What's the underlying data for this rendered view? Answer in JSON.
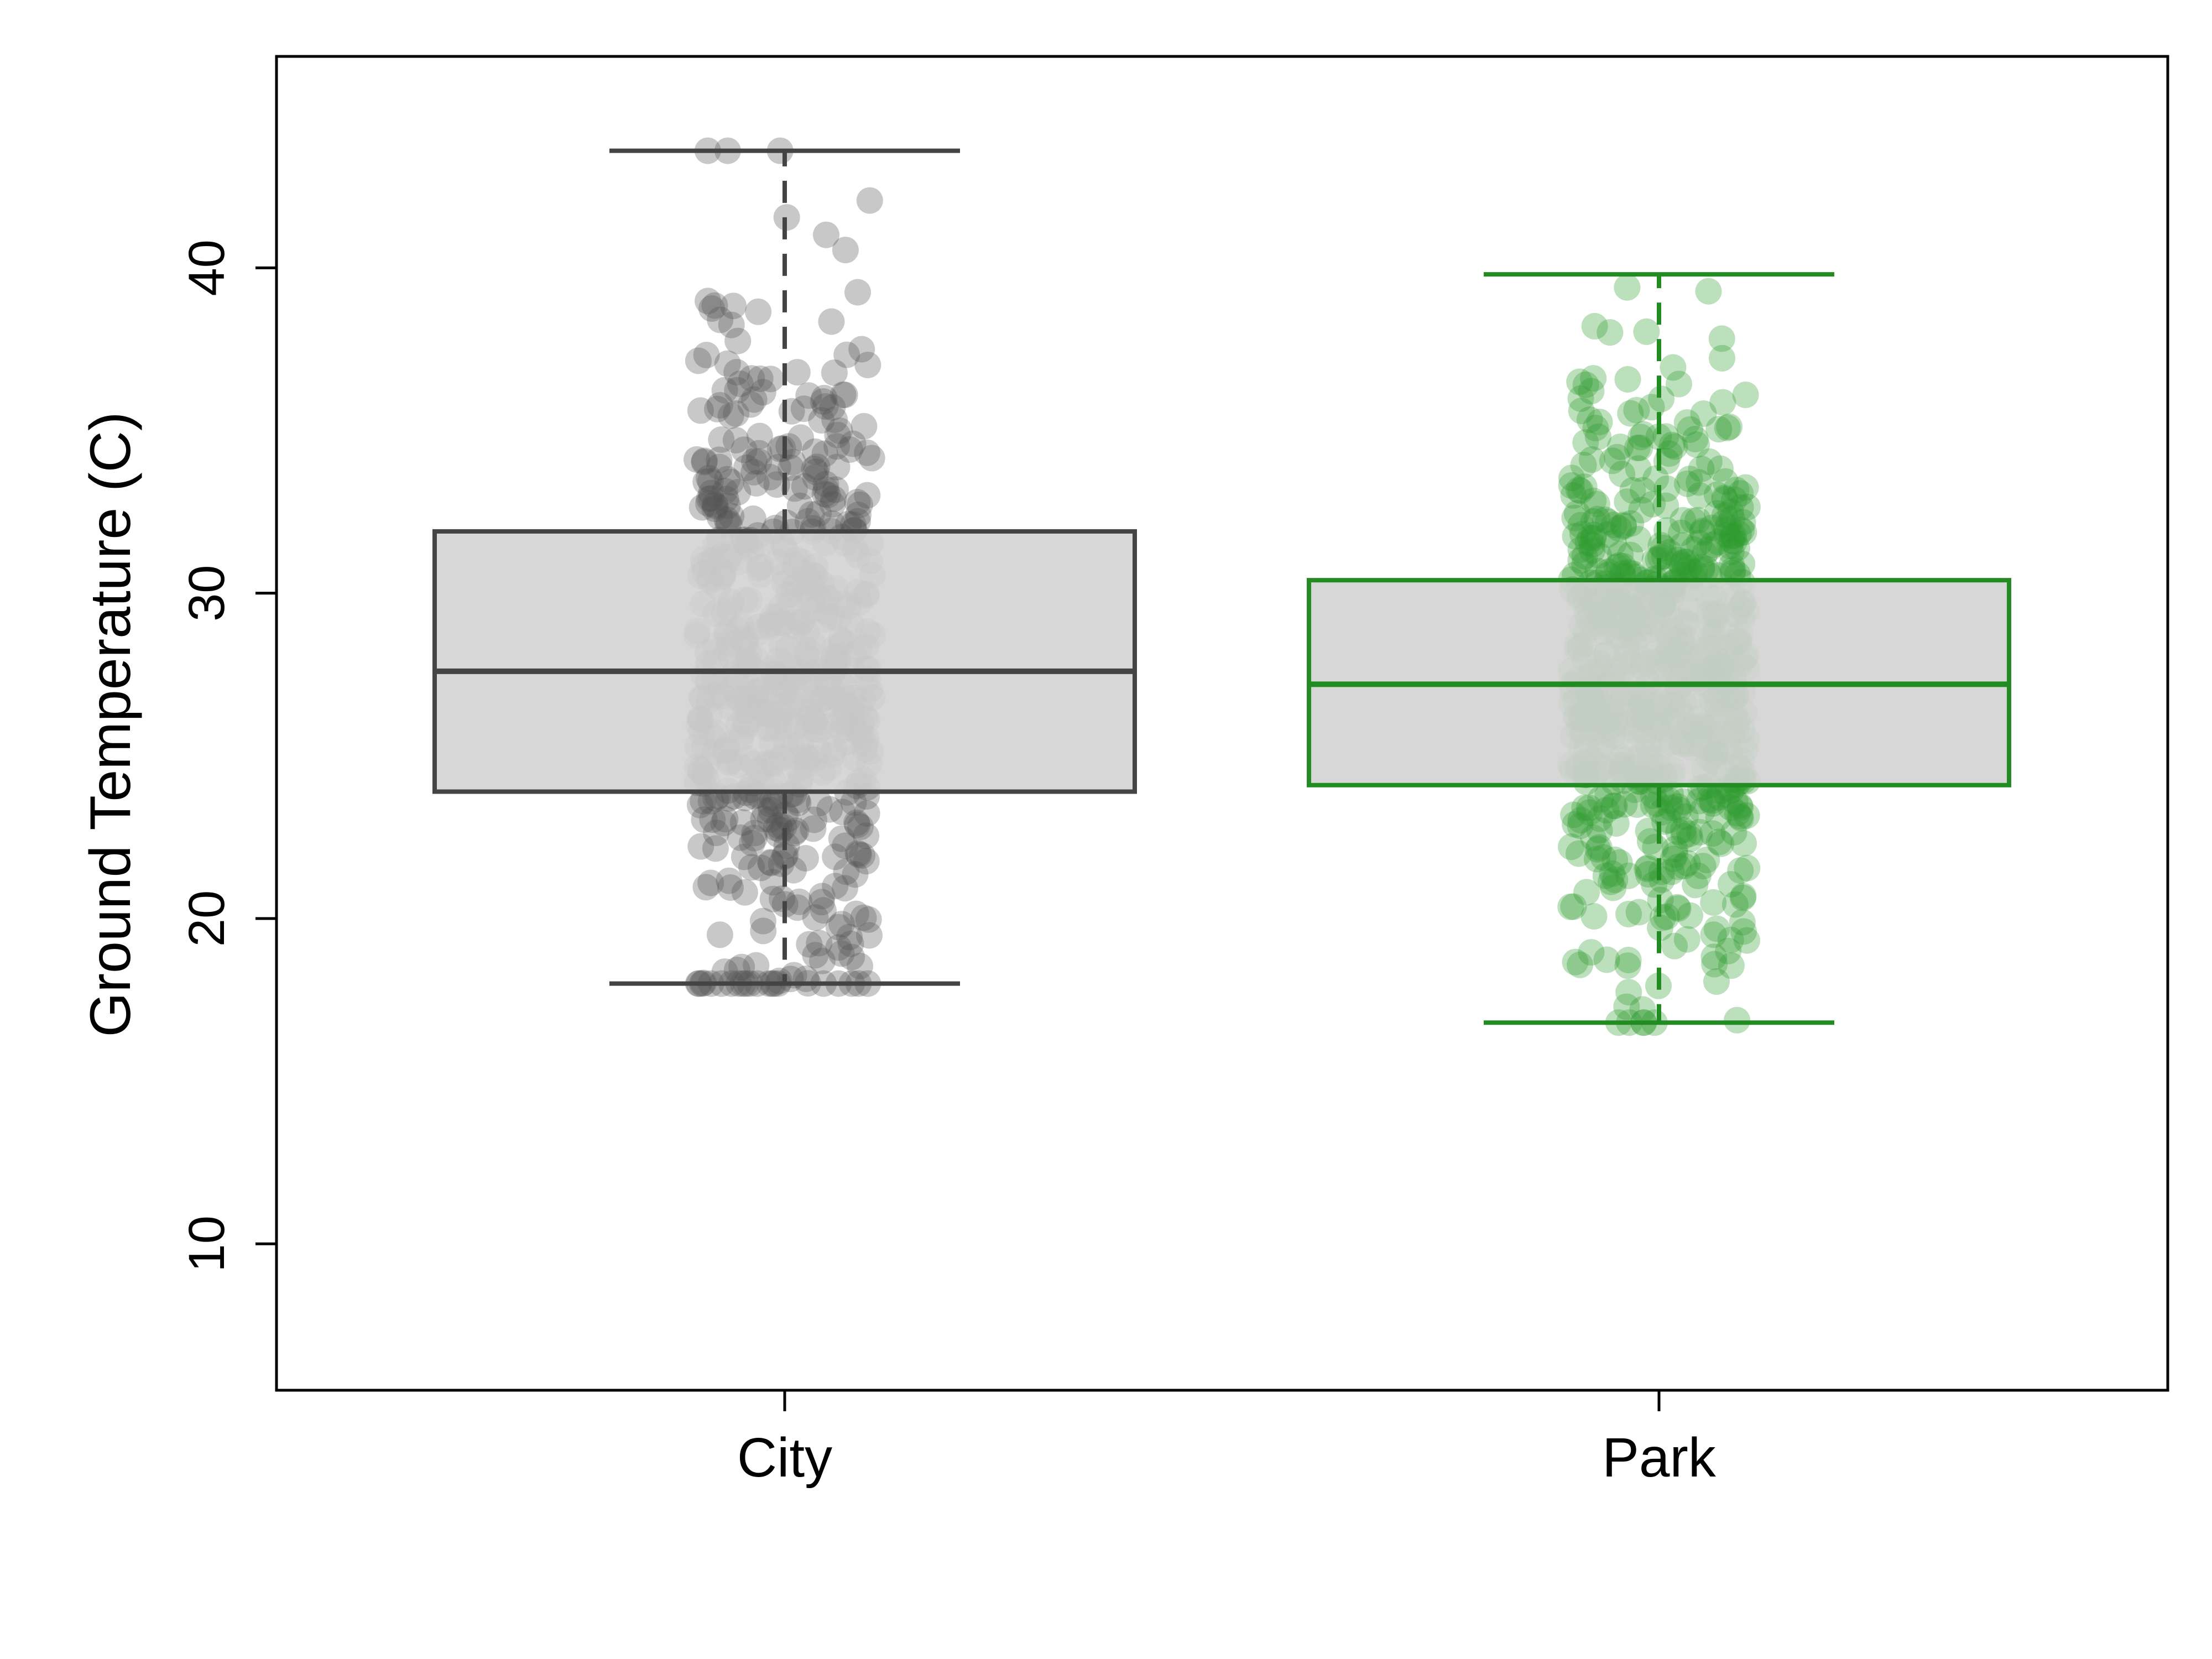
{
  "chart_data": {
    "type": "box",
    "title": "",
    "xlabel": "",
    "ylabel": "Ground Temperature  (C)",
    "ylim": [
      5.5,
      46.5
    ],
    "yticks": [
      10,
      20,
      30,
      40
    ],
    "ytick_labels": [
      "10",
      "20",
      "30",
      "40"
    ],
    "grid": false,
    "legend": "none",
    "categories": [
      "City",
      "Park"
    ],
    "series": [
      {
        "category": "City",
        "color": "#444444",
        "box_fill": "#d3d3d3",
        "point_color": "#555555",
        "whisker_low": 18.0,
        "q1": 23.9,
        "median": 27.6,
        "q3": 31.9,
        "whisker_high": 43.6,
        "n_points": 600,
        "point_mean": 27.8,
        "point_sd": 5.4
      },
      {
        "category": "Park",
        "color": "#228b22",
        "box_fill": "#d3d3d3",
        "point_color": "#2e9a2e",
        "whisker_low": 16.8,
        "q1": 24.1,
        "median": 27.2,
        "q3": 30.4,
        "whisker_high": 39.8,
        "n_points": 700,
        "point_mean": 27.3,
        "point_sd": 4.5
      }
    ]
  }
}
